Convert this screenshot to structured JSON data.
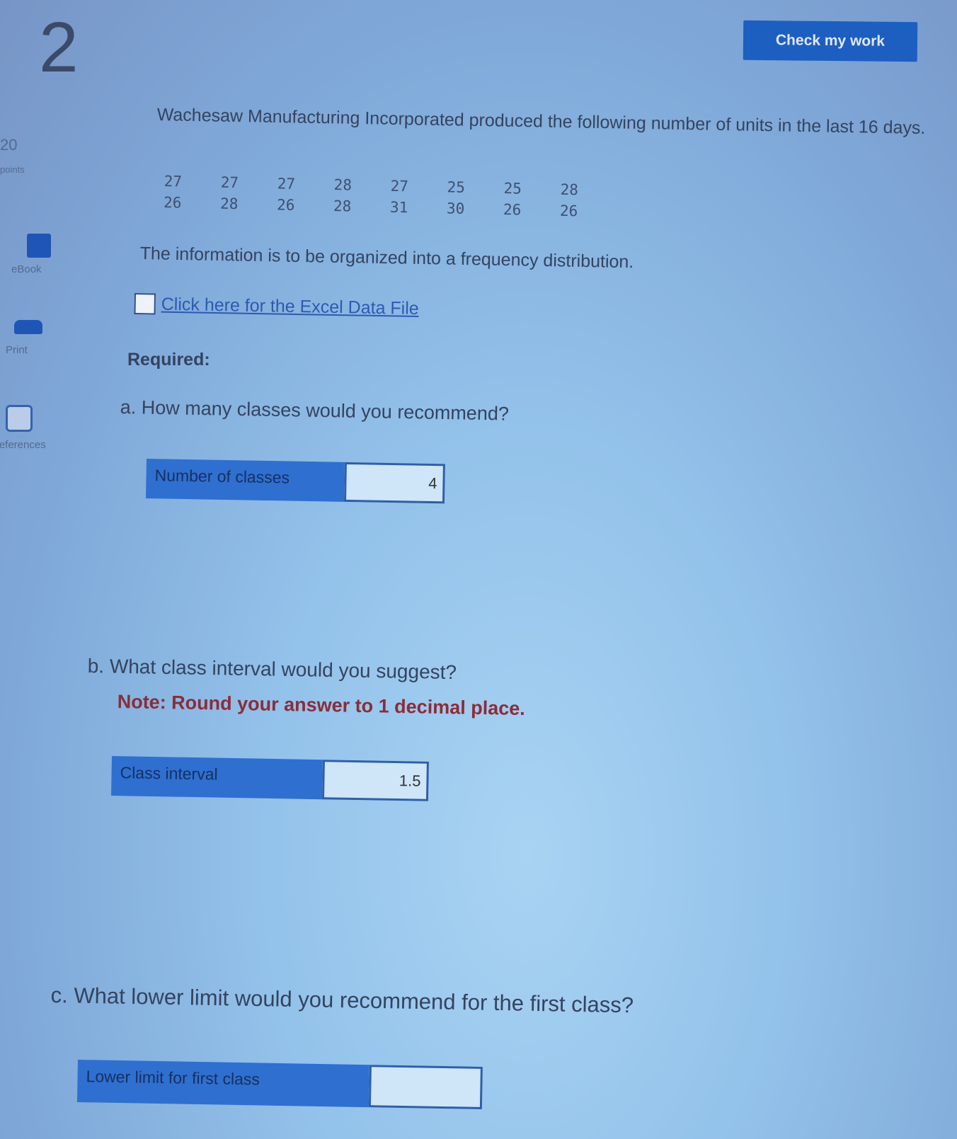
{
  "question_number": "2",
  "check_button": "Check my work",
  "sidebar": {
    "points_value": "20",
    "points_label": "points",
    "items": [
      {
        "label": "eBook",
        "icon": "book-icon"
      },
      {
        "label": "Print",
        "icon": "printer-icon"
      },
      {
        "label": "References",
        "icon": "references-icon"
      }
    ]
  },
  "intro": "Wachesaw Manufacturing Incorporated produced the following number of units in the last 16 days.",
  "data_values": [
    [
      "27",
      "27",
      "27",
      "28",
      "27",
      "25",
      "25",
      "28"
    ],
    [
      "26",
      "28",
      "26",
      "28",
      "31",
      "30",
      "26",
      "26"
    ]
  ],
  "organize_text": "The information is to be organized into a frequency distribution.",
  "excel_link": "Click here for the Excel Data File",
  "required": "Required:",
  "parts": {
    "a": {
      "question": "a. How many classes would you recommend?",
      "label": "Number of classes",
      "value": "4"
    },
    "b": {
      "question": "b. What class interval would you suggest?",
      "note": "Note: Round your answer to 1 decimal place.",
      "label": "Class interval",
      "value": "1.5"
    },
    "c": {
      "question": "c. What lower limit would you recommend for the first class?",
      "label": "Lower limit for first class",
      "value": ""
    }
  }
}
